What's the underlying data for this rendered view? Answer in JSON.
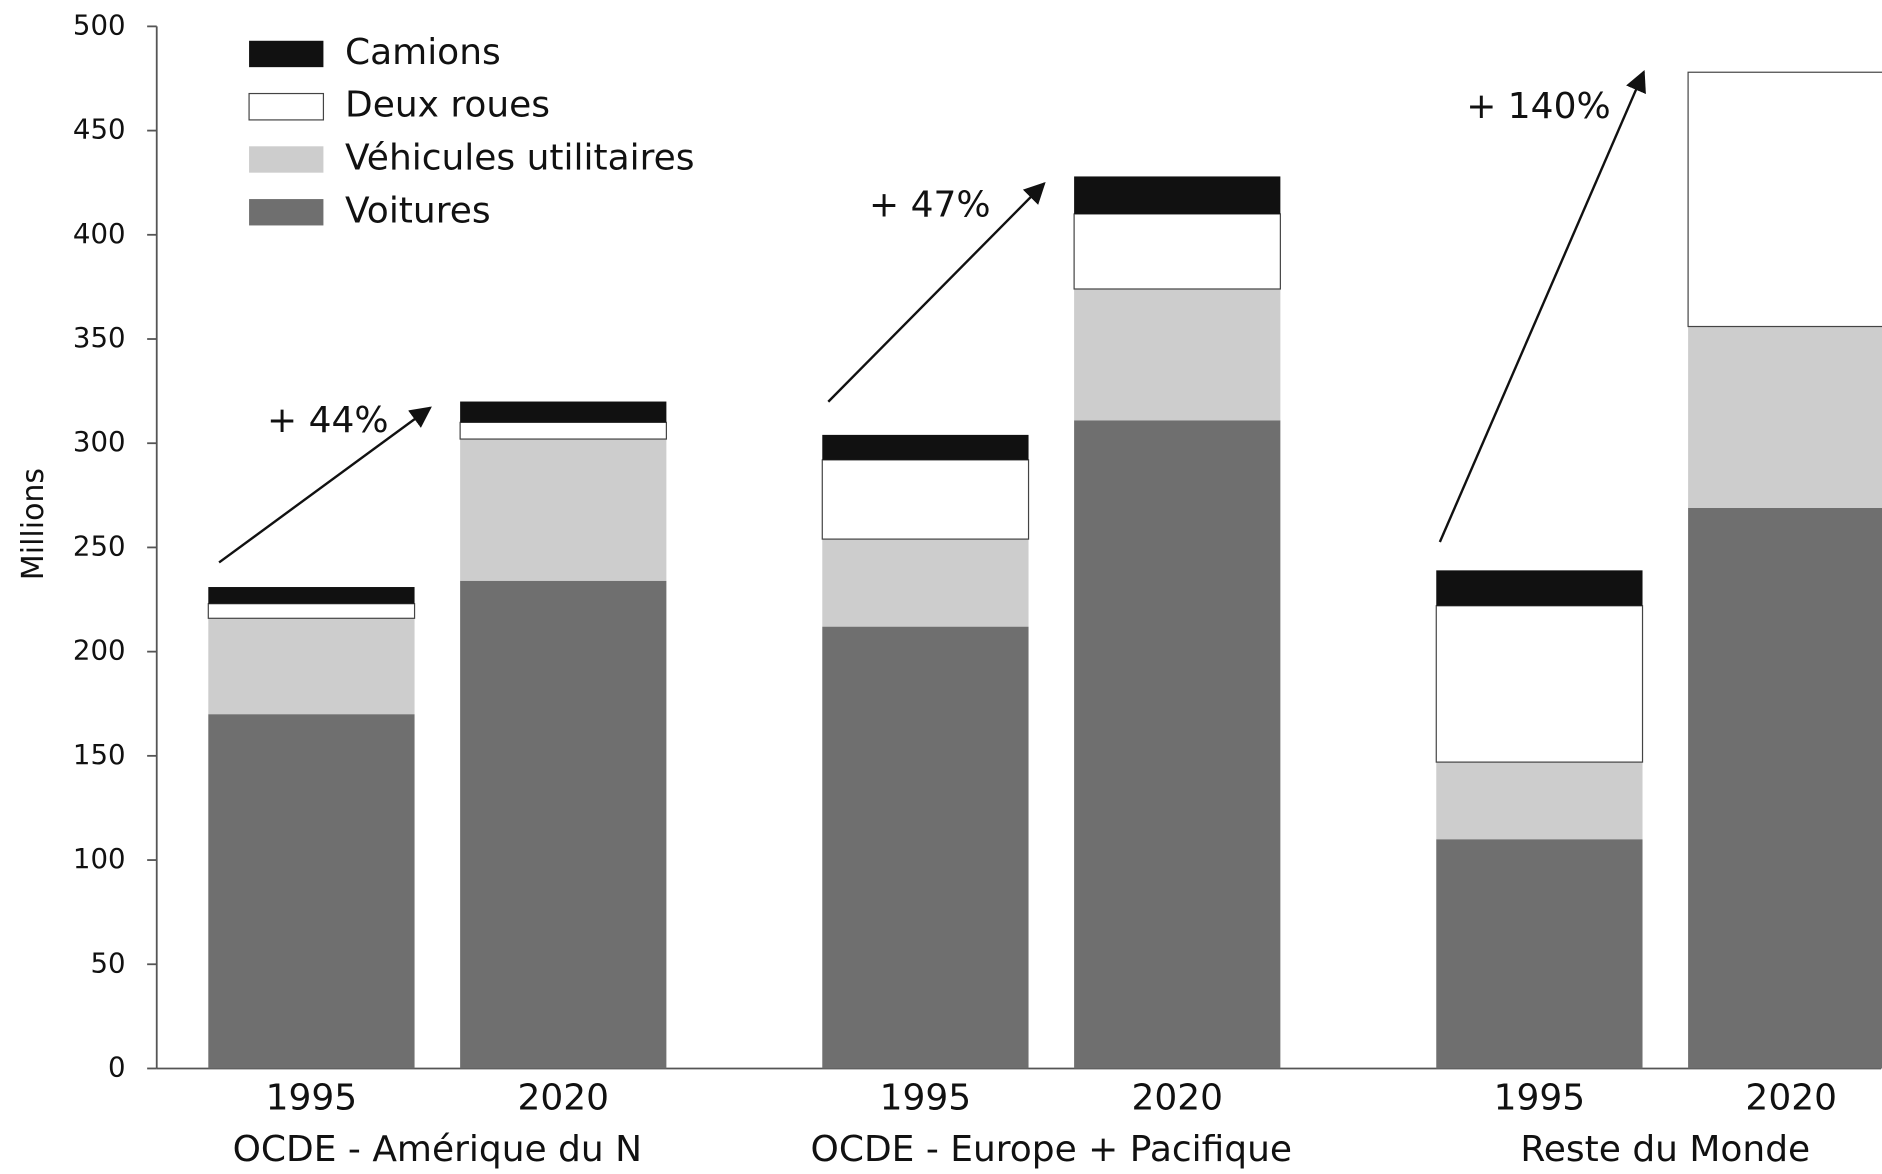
{
  "chart_data": {
    "type": "stacked-bar",
    "y_label": "Millions",
    "categories": [
      "1995",
      "2020",
      "1995",
      "2020",
      "1995",
      "2020"
    ],
    "groups": [
      "OCDE - Amérique du N",
      "OCDE - Europe + Pacifique",
      "Reste du Monde"
    ],
    "series": [
      {
        "name": "Voitures",
        "color": "#6f6f6f",
        "values": [
          170,
          234,
          212,
          311,
          110,
          269
        ]
      },
      {
        "name": "Véhicules utilitaires",
        "color": "#cdcdcd",
        "values": [
          46,
          68,
          42,
          63,
          37,
          87
        ]
      },
      {
        "name": "Deux roues",
        "color": "#ffffff",
        "values": [
          7,
          8,
          38,
          36,
          75,
          122
        ]
      },
      {
        "name": "Camions",
        "color": "#111111",
        "values": [
          8,
          10,
          12,
          18,
          17,
          0
        ]
      }
    ],
    "annotations": [
      "+ 44%",
      "+ 47%",
      "+ 140%"
    ],
    "ylim": [
      0,
      500
    ],
    "yticks": [
      0,
      50,
      100,
      150,
      200,
      250,
      300,
      350,
      400,
      450,
      500
    ]
  }
}
